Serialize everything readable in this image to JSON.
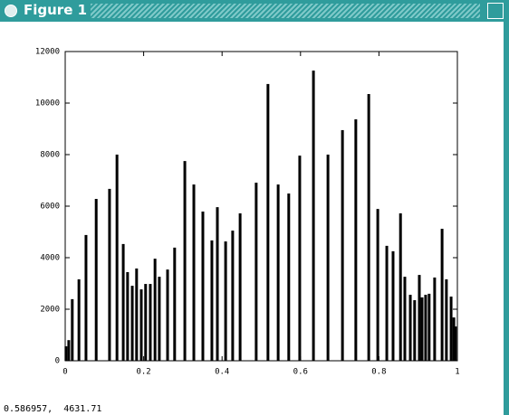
{
  "window": {
    "title": "Figure 1",
    "status": "0.586957,  4631.71"
  },
  "chart_data": {
    "type": "bar",
    "x": [
      0.002,
      0.009,
      0.018,
      0.035,
      0.053,
      0.079,
      0.113,
      0.132,
      0.148,
      0.159,
      0.171,
      0.182,
      0.194,
      0.205,
      0.217,
      0.229,
      0.24,
      0.261,
      0.279,
      0.305,
      0.328,
      0.351,
      0.374,
      0.388,
      0.409,
      0.427,
      0.446,
      0.487,
      0.517,
      0.543,
      0.57,
      0.598,
      0.633,
      0.67,
      0.707,
      0.741,
      0.774,
      0.797,
      0.82,
      0.836,
      0.855,
      0.866,
      0.88,
      0.891,
      0.903,
      0.91,
      0.919,
      0.928,
      0.942,
      0.961,
      0.972,
      0.984,
      0.991,
      0.995
    ],
    "values": [
      560,
      800,
      2390,
      3160,
      4880,
      6280,
      6670,
      8000,
      4530,
      3440,
      2910,
      3580,
      2770,
      2980,
      2980,
      3960,
      3260,
      3540,
      4390,
      7750,
      6840,
      5790,
      4670,
      5960,
      4630,
      5050,
      5720,
      6910,
      10740,
      6840,
      6490,
      7960,
      11260,
      8000,
      8950,
      9370,
      10350,
      5890,
      4460,
      4250,
      5720,
      3260,
      2560,
      2350,
      3330,
      2460,
      2560,
      2600,
      3230,
      5120,
      3160,
      2490,
      1680,
      1330
    ],
    "color": "#000000",
    "xlim": [
      0,
      1
    ],
    "xticks": [
      0,
      0.2,
      0.4,
      0.6,
      0.8,
      1
    ],
    "ylim": [
      0,
      12000
    ],
    "yticks": [
      0,
      2000,
      4000,
      6000,
      8000,
      10000,
      12000
    ],
    "grid": false
  }
}
